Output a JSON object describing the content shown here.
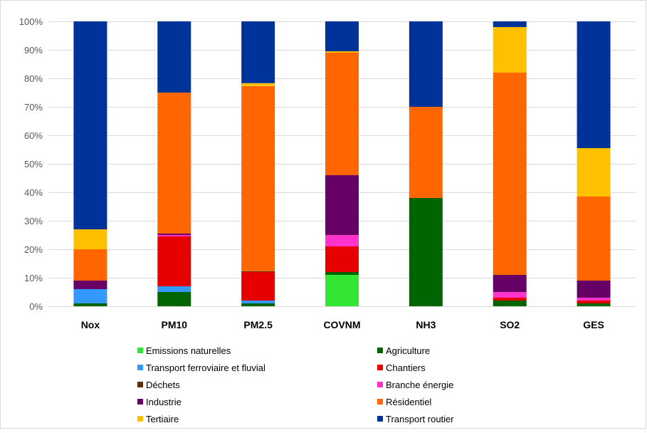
{
  "chart_data": {
    "type": "bar",
    "stacked": true,
    "title": "",
    "xlabel": "",
    "ylabel": "",
    "ylim": [
      0,
      100
    ],
    "y_ticks": [
      "0%",
      "10%",
      "20%",
      "30%",
      "40%",
      "50%",
      "60%",
      "70%",
      "80%",
      "90%",
      "100%"
    ],
    "y_grid": true,
    "legend_placement": "bottom",
    "categories": [
      "Nox",
      "PM10",
      "PM2.5",
      "COVNM",
      "NH3",
      "SO2",
      "GES"
    ],
    "series": [
      {
        "name": "Emissions naturelles",
        "color": "#33e633",
        "values": [
          0,
          0,
          0,
          11,
          0,
          0,
          0
        ]
      },
      {
        "name": "Agriculture",
        "color": "#006400",
        "values": [
          1,
          5,
          1,
          1,
          38,
          2,
          1
        ]
      },
      {
        "name": "Transport ferroviaire et fluvial",
        "color": "#3399ff",
        "values": [
          5,
          2,
          1,
          0,
          0,
          0,
          0
        ]
      },
      {
        "name": "Chantiers",
        "color": "#e60000",
        "values": [
          0,
          17.5,
          10,
          9,
          0,
          1,
          1
        ]
      },
      {
        "name": "Déchets",
        "color": "#5c2e0a",
        "values": [
          0,
          0,
          0.3,
          0,
          0,
          0,
          0
        ]
      },
      {
        "name": "Branche énergie",
        "color": "#ff33cc",
        "values": [
          0,
          0.5,
          0,
          4,
          0,
          2,
          1
        ]
      },
      {
        "name": "Industrie",
        "color": "#660066",
        "values": [
          3,
          0.5,
          0,
          21,
          0,
          6,
          6
        ]
      },
      {
        "name": "Résidentiel",
        "color": "#ff6600",
        "values": [
          11,
          49.5,
          65,
          43,
          32,
          71,
          29.5
        ]
      },
      {
        "name": "Tertiaire",
        "color": "#ffc000",
        "values": [
          7,
          0,
          1,
          0.5,
          0,
          16,
          17
        ]
      },
      {
        "name": "Transport routier",
        "color": "#003399",
        "values": [
          73,
          25,
          21.7,
          10.5,
          30,
          2,
          44.5
        ]
      }
    ]
  }
}
